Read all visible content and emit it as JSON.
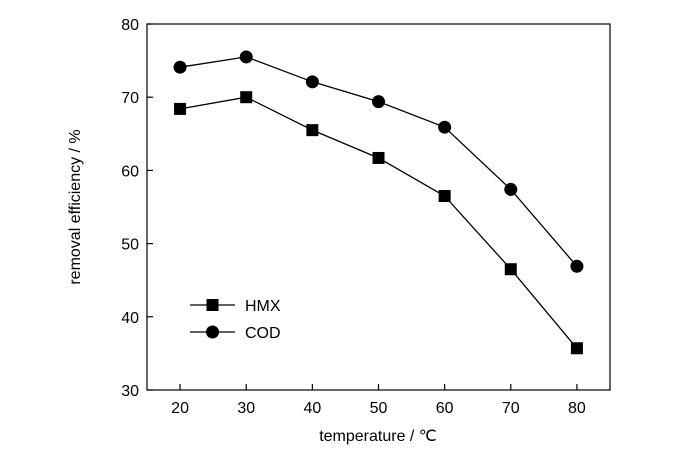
{
  "chart_data": {
    "type": "line",
    "xlabel": "temperature / ℃",
    "ylabel": "removal efficiency / %",
    "x": [
      20,
      30,
      40,
      50,
      60,
      70,
      80
    ],
    "xlim": [
      15,
      85
    ],
    "ylim": [
      30,
      80
    ],
    "xticks": [
      20,
      30,
      40,
      50,
      60,
      70,
      80
    ],
    "yticks": [
      30,
      40,
      50,
      60,
      70,
      80
    ],
    "grid": false,
    "legend_position": "lower-left",
    "series": [
      {
        "name": "HMX",
        "marker": "square",
        "color": "#000000",
        "values": [
          68.4,
          70.0,
          65.5,
          61.7,
          56.5,
          46.5,
          35.7
        ]
      },
      {
        "name": "COD",
        "marker": "circle",
        "color": "#000000",
        "values": [
          74.1,
          75.5,
          72.1,
          69.4,
          65.9,
          57.4,
          46.9
        ]
      }
    ]
  }
}
